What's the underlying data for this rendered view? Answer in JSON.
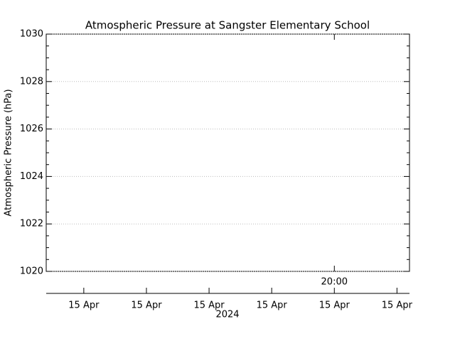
{
  "chart_data": {
    "type": "line",
    "title": "Atmospheric Pressure at Sangster Elementary School",
    "ylabel": "Atmospheric Pressure (hPa)",
    "xlabel": "2024",
    "series": [],
    "ylim": [
      1020,
      1030
    ],
    "yticks": [
      1020,
      1022,
      1024,
      1026,
      1028,
      1030
    ],
    "grid": true,
    "xlim": [
      15.4,
      21.2
    ],
    "xticks": [
      {
        "value": 16,
        "label": "15 Apr"
      },
      {
        "value": 17,
        "label": "15 Apr"
      },
      {
        "value": 18,
        "label": "15 Apr"
      },
      {
        "value": 19,
        "label": "15 Apr"
      },
      {
        "value": 20,
        "label": "15 Apr"
      },
      {
        "value": 21,
        "label": "15 Apr"
      }
    ],
    "x2ticks": [
      {
        "value": 20,
        "label": "20:00"
      }
    ]
  }
}
